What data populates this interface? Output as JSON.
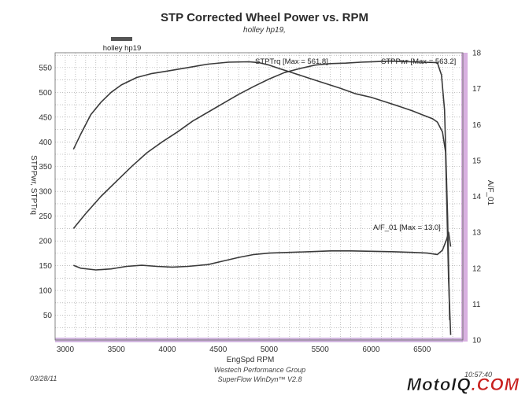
{
  "chart_data": {
    "type": "line",
    "title": "STP Corrected Wheel Power vs. RPM",
    "subtitle": "holley hp19,",
    "legend": [
      "holley hp19"
    ],
    "xlabel": "EngSpd  RPM",
    "ylabel_left": "STPPwr, STPTrq",
    "ylabel_right": "A/F_01",
    "xlim": [
      2900,
      6900
    ],
    "ylim_left": [
      0,
      580
    ],
    "ylim_right": [
      10,
      18
    ],
    "x_ticks": [
      3000,
      3500,
      4000,
      4500,
      5000,
      5500,
      6000,
      6500
    ],
    "y_ticks_left": [
      50,
      100,
      150,
      200,
      250,
      300,
      350,
      400,
      450,
      500,
      550
    ],
    "y_ticks_right": [
      10,
      11,
      12,
      13,
      14,
      15,
      16,
      17,
      18
    ],
    "grid": true,
    "series": [
      {
        "name": "STPTrq",
        "label": "STPTrq [Max = 561.8]",
        "axis": "left",
        "color": "#3a3a3a",
        "x": [
          3080,
          3150,
          3250,
          3350,
          3450,
          3550,
          3700,
          3850,
          4000,
          4200,
          4400,
          4600,
          4800,
          4900,
          5000,
          5100,
          5250,
          5400,
          5550,
          5700,
          5850,
          6000,
          6150,
          6300,
          6400,
          6500,
          6600,
          6650,
          6700,
          6730,
          6760,
          6780
        ],
        "values": [
          385,
          415,
          455,
          480,
          500,
          515,
          530,
          538,
          543,
          550,
          557,
          561,
          561.8,
          560,
          555,
          548,
          538,
          528,
          518,
          508,
          497,
          490,
          480,
          470,
          463,
          455,
          447,
          440,
          420,
          380,
          120,
          10
        ]
      },
      {
        "name": "STPPwr",
        "label": "STPPwr [Max = 563.2]",
        "axis": "left",
        "color": "#3a3a3a",
        "x": [
          3080,
          3200,
          3350,
          3500,
          3650,
          3800,
          3950,
          4100,
          4250,
          4400,
          4550,
          4700,
          4850,
          5000,
          5150,
          5300,
          5450,
          5600,
          5750,
          5900,
          6050,
          6200,
          6350,
          6500,
          6650,
          6690,
          6720,
          6750,
          6770
        ],
        "values": [
          225,
          255,
          290,
          320,
          350,
          378,
          400,
          420,
          442,
          460,
          478,
          496,
          512,
          527,
          540,
          548,
          555,
          558,
          559,
          561,
          562,
          563.2,
          562,
          561,
          560,
          535,
          465,
          250,
          40
        ]
      },
      {
        "name": "A/F_01",
        "label": "A/F_01 [Max = 13.0]",
        "axis": "right",
        "color": "#3a3a3a",
        "x": [
          3080,
          3150,
          3300,
          3450,
          3600,
          3750,
          3900,
          4050,
          4200,
          4400,
          4550,
          4700,
          4850,
          5000,
          5200,
          5400,
          5600,
          5800,
          6000,
          6200,
          6400,
          6550,
          6650,
          6700,
          6740,
          6760,
          6780
        ],
        "values": [
          12.08,
          12.0,
          11.95,
          11.98,
          12.05,
          12.08,
          12.05,
          12.03,
          12.05,
          12.1,
          12.2,
          12.3,
          12.38,
          12.42,
          12.44,
          12.46,
          12.48,
          12.48,
          12.47,
          12.46,
          12.44,
          12.42,
          12.38,
          12.5,
          12.8,
          13.0,
          12.6
        ]
      }
    ]
  },
  "footer": {
    "date": "03/28/11",
    "company": "Westech Performance Group",
    "software": "SuperFlow WinDyn™ V2.8",
    "time": "10:57:40"
  },
  "brand": {
    "logo_text": "MotoIQ.COM",
    "colors": {
      "primary": "#1a1a1a",
      "accent": "#c8201e"
    }
  },
  "colors": {
    "grid": "#9a9a9a",
    "right_axis_band": "#d8b0e0",
    "bottom_band": "#c9a9d9",
    "legend_swatch": "#555555"
  }
}
